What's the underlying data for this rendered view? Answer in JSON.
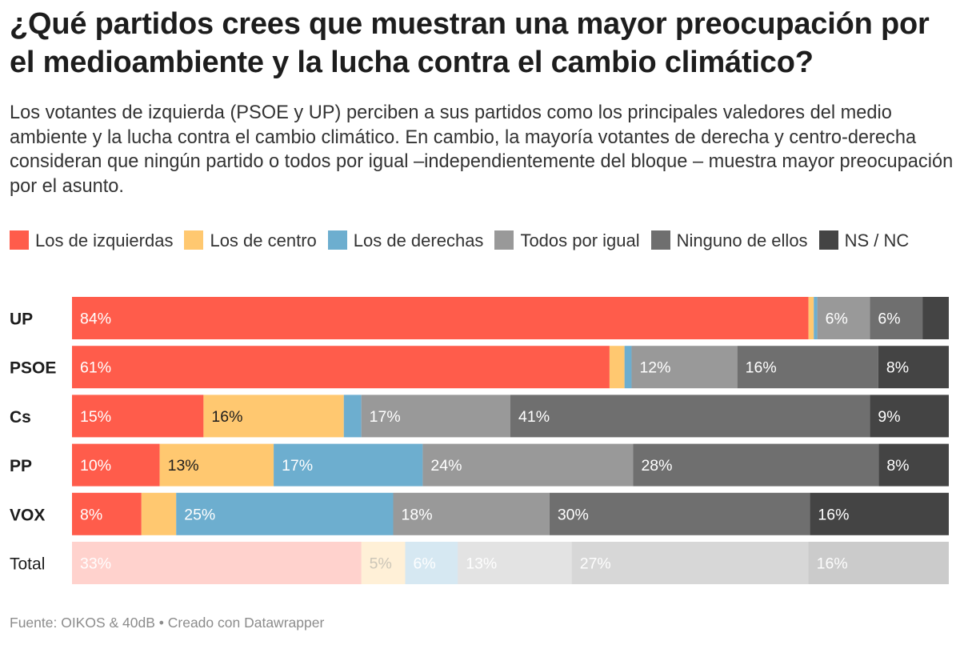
{
  "title": "¿Qué partidos crees que muestran una mayor preocupación por el medioambiente y la lucha contra el cambio climático?",
  "subtitle": "Los votantes de izquierda (PSOE y UP) perciben a sus partidos como los principales valedores del medio ambiente y la lucha contra el cambio climático. En cambio, la mayoría votantes de derecha y centro-derecha consideran que ningún partido o todos por igual –independientemente del bloque – muestra mayor preocupación por el asunto.",
  "source": "Fuente: OIKOS & 40dB • Creado con Datawrapper",
  "legend": [
    {
      "label": "Los de izquierdas",
      "color": "#ff5c4b"
    },
    {
      "label": "Los de centro",
      "color": "#ffc870"
    },
    {
      "label": "Los de derechas",
      "color": "#6daecf"
    },
    {
      "label": "Todos por igual",
      "color": "#999999"
    },
    {
      "label": "Ninguno de ellos",
      "color": "#6f6f6f"
    },
    {
      "label": "NS / NC",
      "color": "#444444"
    }
  ],
  "chart_data": {
    "type": "bar",
    "stacked": "100%",
    "orientation": "horizontal",
    "categories": [
      "UP",
      "PSOE",
      "Cs",
      "PP",
      "VOX",
      "Total"
    ],
    "category_bold": [
      true,
      true,
      true,
      true,
      true,
      false
    ],
    "series": [
      {
        "name": "Los de izquierdas",
        "color": "#ff5c4b",
        "values": [
          84,
          61,
          15,
          10,
          8,
          33
        ]
      },
      {
        "name": "Los de centro",
        "color": "#ffc870",
        "values": [
          0.6,
          1.7,
          16,
          13,
          4,
          5
        ]
      },
      {
        "name": "Los de derechas",
        "color": "#6daecf",
        "values": [
          0.4,
          0.8,
          2,
          17,
          25,
          6
        ]
      },
      {
        "name": "Todos por igual",
        "color": "#999999",
        "values": [
          6,
          12,
          17,
          24,
          18,
          13
        ]
      },
      {
        "name": "Ninguno de ellos",
        "color": "#6f6f6f",
        "values": [
          6,
          16,
          41,
          28,
          30,
          27
        ]
      },
      {
        "name": "NS / NC",
        "color": "#444444",
        "values": [
          3,
          8,
          9,
          8,
          16,
          16
        ]
      }
    ],
    "value_labels": [
      [
        "84%",
        "",
        "",
        "6%",
        "6%",
        ""
      ],
      [
        "61%",
        "",
        "",
        "12%",
        "16%",
        "8%"
      ],
      [
        "15%",
        "16%",
        "",
        "17%",
        "41%",
        "9%"
      ],
      [
        "10%",
        "13%",
        "17%",
        "24%",
        "28%",
        "8%"
      ],
      [
        "8%",
        "",
        "25%",
        "18%",
        "30%",
        "16%"
      ],
      [
        "33%",
        "5%",
        "6%",
        "13%",
        "27%",
        "16%"
      ]
    ],
    "faded_categories": [
      "Total"
    ]
  }
}
